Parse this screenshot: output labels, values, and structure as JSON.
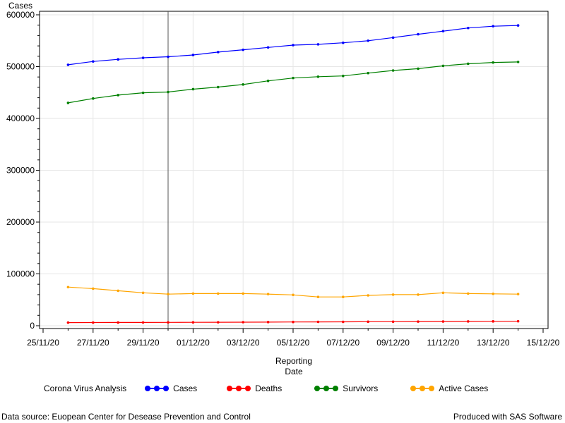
{
  "chart_data": {
    "type": "line",
    "ylabel": "Cases",
    "xlabel_lines": [
      "Reporting",
      "Date"
    ],
    "ylim": [
      0,
      610000
    ],
    "yticks": [
      0,
      100000,
      200000,
      300000,
      400000,
      500000,
      600000
    ],
    "ytick_labels": [
      "0",
      "100000",
      "200000",
      "300000",
      "400000",
      "500000",
      "600000"
    ],
    "xlim": [
      "2020-11-25",
      "2020-12-15"
    ],
    "xtick_labels": [
      "25/11/20",
      "27/11/20",
      "29/11/20",
      "01/12/20",
      "03/12/20",
      "05/12/20",
      "07/12/20",
      "09/12/20",
      "11/12/20",
      "13/12/20",
      "15/12/20"
    ],
    "ref_line_x": "2020-11-30",
    "grid": true,
    "x": [
      "2020-11-26",
      "2020-11-27",
      "2020-11-28",
      "2020-11-29",
      "2020-11-30",
      "2020-12-01",
      "2020-12-02",
      "2020-12-03",
      "2020-12-04",
      "2020-12-05",
      "2020-12-06",
      "2020-12-07",
      "2020-12-08",
      "2020-12-09",
      "2020-12-10",
      "2020-12-11",
      "2020-12-12",
      "2020-12-13",
      "2020-12-14"
    ],
    "series": [
      {
        "name": "Cases",
        "color": "#0000ff",
        "values": [
          503500,
          510000,
          514000,
          517000,
          519000,
          522500,
          528000,
          532500,
          537000,
          541500,
          543000,
          546000,
          550000,
          556000,
          562500,
          568500,
          574500,
          578000,
          579500
        ]
      },
      {
        "name": "Survivors",
        "color": "#008000",
        "values": [
          430000,
          438500,
          445000,
          449500,
          451000,
          456500,
          460500,
          465500,
          472500,
          478000,
          480500,
          482000,
          487500,
          492500,
          496000,
          501500,
          505500,
          508000,
          509000
        ]
      },
      {
        "name": "Active Cases",
        "color": "#ffa500",
        "values": [
          74500,
          71500,
          67500,
          63500,
          61000,
          62000,
          62000,
          62000,
          61000,
          59500,
          55500,
          55500,
          58500,
          60000,
          60000,
          63500,
          62000,
          61500,
          61000
        ]
      },
      {
        "name": "Deaths",
        "color": "#ff0000",
        "values": [
          6000,
          6100,
          6200,
          6300,
          6400,
          6500,
          6600,
          6800,
          7000,
          7200,
          7400,
          7500,
          7700,
          7800,
          8000,
          8100,
          8300,
          8400,
          8600
        ]
      }
    ]
  },
  "legend": {
    "title": "Corona Virus Analysis",
    "items": [
      {
        "label": "Cases",
        "color": "#0000ff"
      },
      {
        "label": "Deaths",
        "color": "#ff0000"
      },
      {
        "label": "Survivors",
        "color": "#008000"
      },
      {
        "label": "Active Cases",
        "color": "#ffa500"
      }
    ]
  },
  "footer": {
    "source": "Data source: Euopean Center for Desease Prevention and Control",
    "produced": "Produced with SAS Software"
  }
}
